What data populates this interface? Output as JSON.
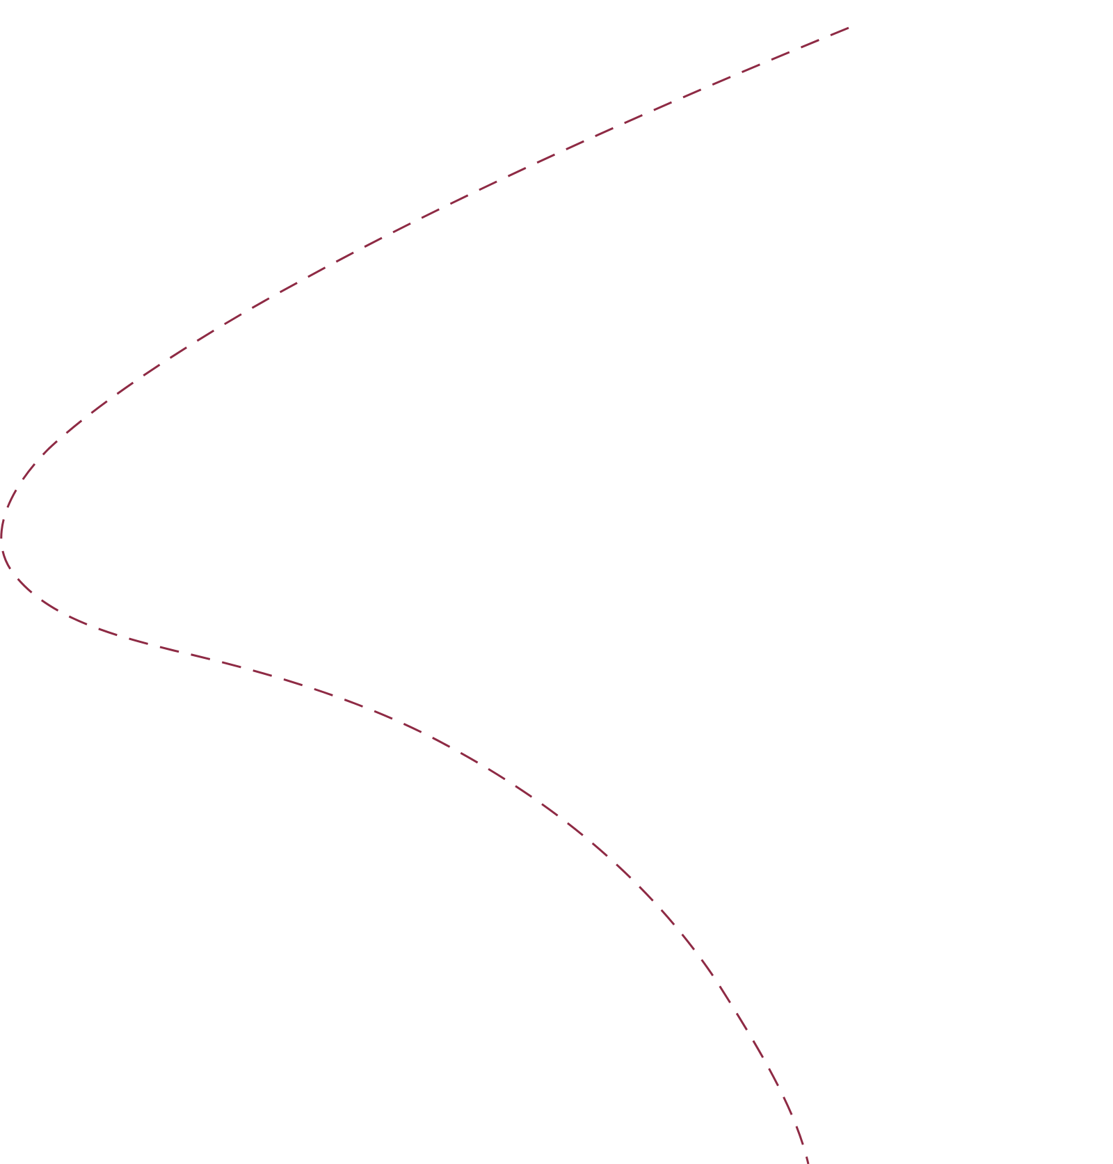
{
  "graphic": {
    "description_key": "dashed-curve",
    "stroke_color": "#8e2a44",
    "line_style": "dashed"
  }
}
